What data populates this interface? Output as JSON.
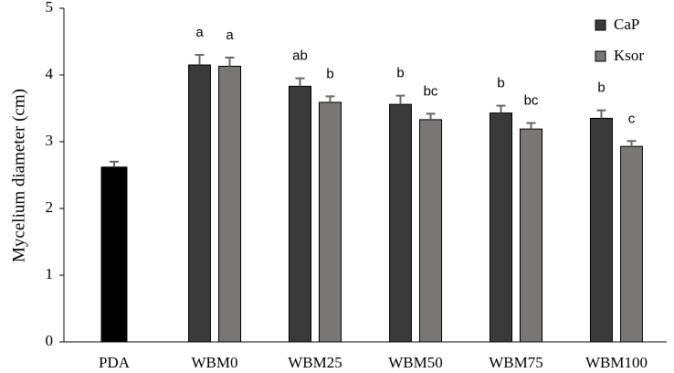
{
  "chart_data": {
    "type": "bar",
    "ylabel": "Mycelium diameter (cm)",
    "xlabel": "",
    "ylim": [
      0,
      5
    ],
    "yticks": [
      0,
      1,
      2,
      3,
      4,
      5
    ],
    "grid": false,
    "legend_placement": "top-right",
    "categories": [
      "PDA",
      "WBM0",
      "WBM25",
      "WBM50",
      "WBM75",
      "WBM100"
    ],
    "control": {
      "category": "PDA",
      "value": 2.62,
      "error": 0.08,
      "color": "#000000"
    },
    "series": [
      {
        "name": "CaP",
        "color": "#3a3a3a",
        "values": [
          null,
          4.15,
          3.83,
          3.56,
          3.43,
          3.35
        ],
        "errors": [
          null,
          0.15,
          0.12,
          0.13,
          0.11,
          0.12
        ],
        "letters": [
          "",
          "a",
          "ab",
          "b",
          "b",
          "b"
        ]
      },
      {
        "name": "Ksor",
        "color": "#7a7676",
        "values": [
          null,
          4.13,
          3.59,
          3.33,
          3.19,
          2.93
        ],
        "errors": [
          null,
          0.13,
          0.09,
          0.09,
          0.09,
          0.08
        ],
        "letters": [
          "",
          "a",
          "b",
          "bc",
          "bc",
          "c"
        ]
      }
    ]
  }
}
